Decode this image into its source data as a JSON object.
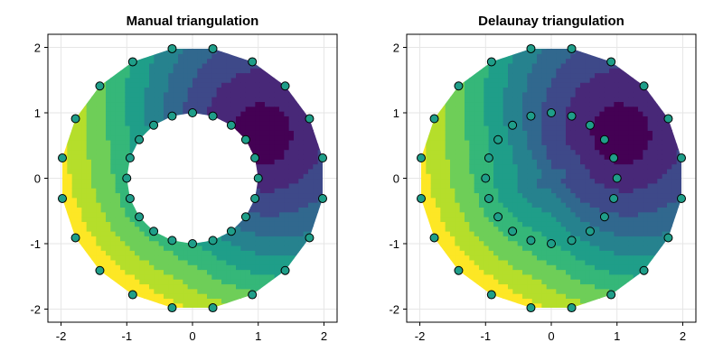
{
  "chart_data": [
    {
      "type": "contourf",
      "title": "Manual triangulation",
      "xlim": [
        -2.2,
        2.2
      ],
      "ylim": [
        -2.2,
        2.2
      ],
      "xticks": [
        "-2",
        "-1",
        "0",
        "1",
        "2"
      ],
      "yticks": [
        "2",
        "1",
        "0",
        "-1",
        "-2"
      ],
      "grid": true,
      "colormap": "viridis",
      "outer_radius": 2,
      "inner_radius": 1,
      "hole": true,
      "min_location": [
        1.0,
        0.6
      ],
      "outer_points": [
        [
          1.98,
          0.31
        ],
        [
          1.78,
          0.91
        ],
        [
          1.41,
          1.41
        ],
        [
          0.91,
          1.78
        ],
        [
          0.31,
          1.98
        ],
        [
          -0.31,
          1.98
        ],
        [
          -0.91,
          1.78
        ],
        [
          -1.41,
          1.41
        ],
        [
          -1.78,
          0.91
        ],
        [
          -1.98,
          0.31
        ],
        [
          -1.98,
          -0.31
        ],
        [
          -1.78,
          -0.91
        ],
        [
          -1.41,
          -1.41
        ],
        [
          -0.91,
          -1.78
        ],
        [
          -0.31,
          -1.98
        ],
        [
          0.31,
          -1.98
        ],
        [
          0.91,
          -1.78
        ],
        [
          1.41,
          -1.41
        ],
        [
          1.78,
          -0.91
        ],
        [
          1.98,
          -0.31
        ]
      ],
      "inner_points": [
        [
          1.0,
          0.0
        ],
        [
          0.95,
          0.31
        ],
        [
          0.81,
          0.59
        ],
        [
          0.59,
          0.81
        ],
        [
          0.31,
          0.95
        ],
        [
          0.0,
          1.0
        ],
        [
          -0.31,
          0.95
        ],
        [
          -0.59,
          0.81
        ],
        [
          -0.81,
          0.59
        ],
        [
          -0.95,
          0.31
        ],
        [
          -1.0,
          0.0
        ],
        [
          -0.95,
          -0.31
        ],
        [
          -0.81,
          -0.59
        ],
        [
          -0.59,
          -0.81
        ],
        [
          -0.31,
          -0.95
        ],
        [
          0.0,
          -1.0
        ],
        [
          0.31,
          -0.95
        ],
        [
          0.59,
          -0.81
        ],
        [
          0.81,
          -0.59
        ],
        [
          0.95,
          -0.31
        ]
      ]
    },
    {
      "type": "contourf",
      "title": "Delaunay triangulation",
      "xlim": [
        -2.2,
        2.2
      ],
      "ylim": [
        -2.2,
        2.2
      ],
      "xticks": [
        "-2",
        "-1",
        "0",
        "1",
        "2"
      ],
      "yticks": [
        "2",
        "1",
        "0",
        "-1",
        "-2"
      ],
      "grid": true,
      "colormap": "viridis",
      "outer_radius": 2,
      "inner_radius": 1,
      "hole": false,
      "min_location": [
        1.0,
        0.6
      ],
      "outer_points": [
        [
          1.98,
          0.31
        ],
        [
          1.78,
          0.91
        ],
        [
          1.41,
          1.41
        ],
        [
          0.91,
          1.78
        ],
        [
          0.31,
          1.98
        ],
        [
          -0.31,
          1.98
        ],
        [
          -0.91,
          1.78
        ],
        [
          -1.41,
          1.41
        ],
        [
          -1.78,
          0.91
        ],
        [
          -1.98,
          0.31
        ],
        [
          -1.98,
          -0.31
        ],
        [
          -1.78,
          -0.91
        ],
        [
          -1.41,
          -1.41
        ],
        [
          -0.91,
          -1.78
        ],
        [
          -0.31,
          -1.98
        ],
        [
          0.31,
          -1.98
        ],
        [
          0.91,
          -1.78
        ],
        [
          1.41,
          -1.41
        ],
        [
          1.78,
          -0.91
        ],
        [
          1.98,
          -0.31
        ]
      ],
      "inner_points": [
        [
          1.0,
          0.0
        ],
        [
          0.95,
          0.31
        ],
        [
          0.81,
          0.59
        ],
        [
          0.59,
          0.81
        ],
        [
          0.31,
          0.95
        ],
        [
          0.0,
          1.0
        ],
        [
          -0.31,
          0.95
        ],
        [
          -0.59,
          0.81
        ],
        [
          -0.81,
          0.59
        ],
        [
          -0.95,
          0.31
        ],
        [
          -1.0,
          0.0
        ],
        [
          -0.95,
          -0.31
        ],
        [
          -0.81,
          -0.59
        ],
        [
          -0.59,
          -0.81
        ],
        [
          -0.31,
          -0.95
        ],
        [
          0.0,
          -1.0
        ],
        [
          0.31,
          -0.95
        ],
        [
          0.59,
          -0.81
        ],
        [
          0.81,
          -0.59
        ],
        [
          0.95,
          -0.31
        ]
      ]
    }
  ],
  "colors": {
    "viridis": [
      "#440154",
      "#482878",
      "#3e4989",
      "#31688e",
      "#26828e",
      "#1f9e89",
      "#35b779",
      "#6ece58",
      "#b5de2b",
      "#fde725"
    ],
    "marker_stroke": "#000000"
  }
}
